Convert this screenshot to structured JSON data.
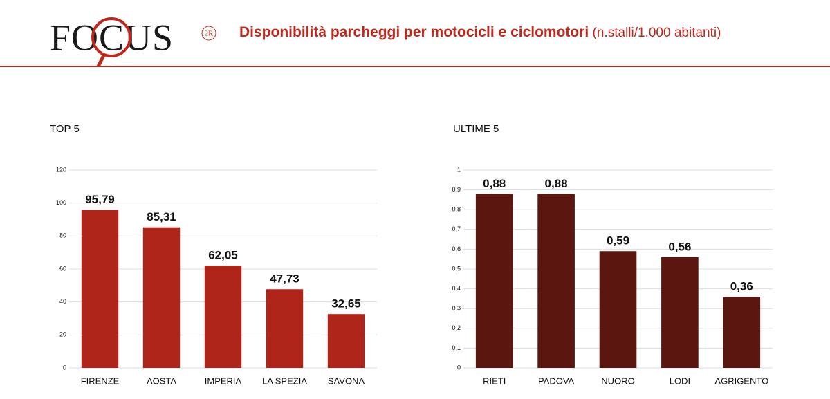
{
  "header": {
    "logo": "FOCUS",
    "logo_mark": "2R",
    "title": "Disponibilità parcheggi per motocicli e ciclomotori",
    "title_unit": "(n.stalli/1.000 abitanti)"
  },
  "chart_data": [
    {
      "type": "bar",
      "title": "TOP 5",
      "categories": [
        "FIRENZE",
        "AOSTA",
        "IMPERIA",
        "LA SPEZIA",
        "SAVONA"
      ],
      "values": [
        95.79,
        85.31,
        62.05,
        47.73,
        32.65
      ],
      "value_labels": [
        "95,79",
        "85,31",
        "62,05",
        "47,73",
        "32,65"
      ],
      "color": "#b0251a",
      "ylim": [
        0,
        120
      ],
      "yticks": [
        0,
        20,
        40,
        60,
        80,
        100,
        120
      ],
      "grid": true
    },
    {
      "type": "bar",
      "title": "ULTIME 5",
      "categories": [
        "RIETI",
        "PADOVA",
        "NUORO",
        "LODI",
        "AGRIGENTO"
      ],
      "values": [
        0.88,
        0.88,
        0.59,
        0.56,
        0.36
      ],
      "value_labels": [
        "0,88",
        "0,88",
        "0,59",
        "0,56",
        "0,36"
      ],
      "color": "#5b1610",
      "ylim": [
        0,
        1
      ],
      "yticks": [
        0,
        {
          "value": 0.1,
          "label": "0,1"
        },
        {
          "value": 0.2,
          "label": "0,2"
        },
        {
          "value": 0.3,
          "label": "0,3"
        },
        {
          "value": 0.4,
          "label": "0,4"
        },
        {
          "value": 0.5,
          "label": "0,5"
        },
        {
          "value": 0.6,
          "label": "0,6"
        },
        {
          "value": 0.7,
          "label": "0,7"
        },
        {
          "value": 0.8,
          "label": "0,8"
        },
        {
          "value": 0.9,
          "label": "0,9"
        },
        1
      ],
      "grid": true
    }
  ]
}
